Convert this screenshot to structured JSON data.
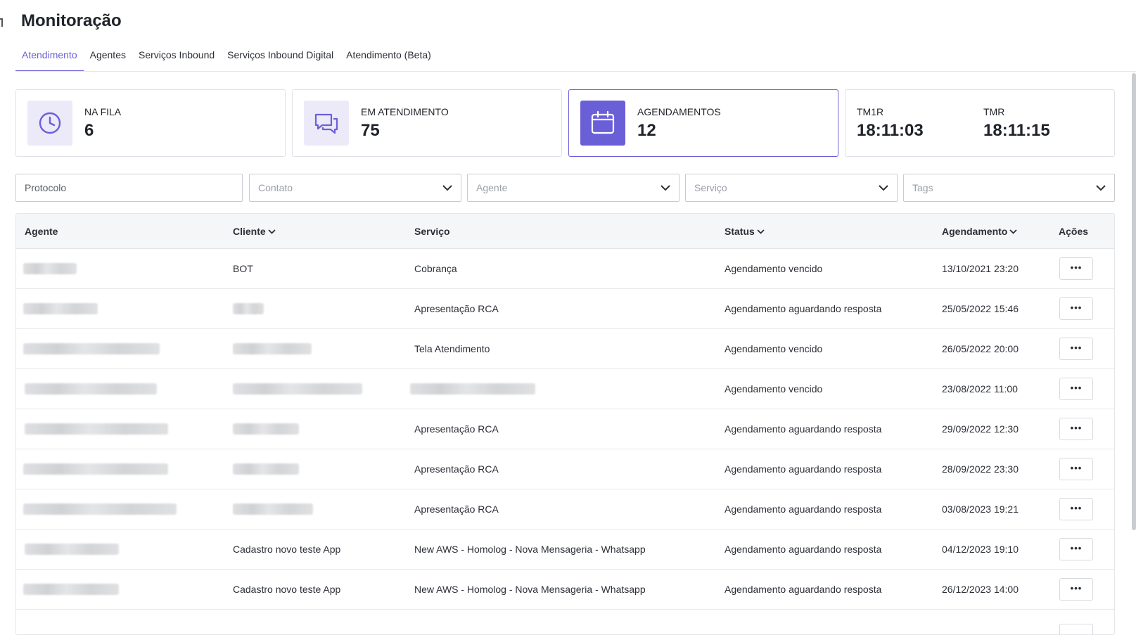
{
  "page": {
    "title": "Monitoração"
  },
  "tabs": [
    {
      "label": "Atendimento",
      "active": true
    },
    {
      "label": "Agentes"
    },
    {
      "label": "Serviços Inbound"
    },
    {
      "label": "Serviços Inbound Digital"
    },
    {
      "label": "Atendimento (Beta)"
    }
  ],
  "cards": {
    "fila": {
      "label": "NA FILA",
      "value": "6",
      "icon": "clock-icon"
    },
    "atendimento": {
      "label": "EM ATENDIMENTO",
      "value": "75",
      "icon": "chat-bubbles-icon"
    },
    "agendamentos": {
      "label": "AGENDAMENTOS",
      "value": "12",
      "icon": "calendar-icon"
    },
    "tm1r": {
      "label": "TM1R",
      "value": "18:11:03"
    },
    "tmr": {
      "label": "TMR",
      "value": "18:11:15"
    }
  },
  "filters": {
    "protocolo": "Protocolo",
    "contato": "Contato",
    "agente": "Agente",
    "servico": "Serviço",
    "tags": "Tags"
  },
  "table": {
    "headers": {
      "agente": "Agente",
      "cliente": "Cliente",
      "servico": "Serviço",
      "status": "Status",
      "agendamento": "Agendamento",
      "acoes": "Ações"
    },
    "rows": [
      {
        "cliente": "BOT",
        "servico": "Cobrança",
        "status": "Agendamento vencido",
        "agendamento": "13/10/2021 23:20"
      },
      {
        "cliente": "",
        "servico": "Apresentação RCA",
        "status": "Agendamento aguardando resposta",
        "agendamento": "25/05/2022 15:46"
      },
      {
        "cliente": "",
        "servico": "Tela Atendimento",
        "status": "Agendamento vencido",
        "agendamento": "26/05/2022 20:00"
      },
      {
        "cliente": "",
        "servico": "",
        "status": "Agendamento vencido",
        "agendamento": "23/08/2022 11:00"
      },
      {
        "cliente": "",
        "servico": "Apresentação RCA",
        "status": "Agendamento aguardando resposta",
        "agendamento": "29/09/2022 12:30"
      },
      {
        "cliente": "",
        "servico": "Apresentação RCA",
        "status": "Agendamento aguardando resposta",
        "agendamento": "28/09/2022 23:30"
      },
      {
        "cliente": "",
        "servico": "Apresentação RCA",
        "status": "Agendamento aguardando resposta",
        "agendamento": "03/08/2023 19:21"
      },
      {
        "cliente": "Cadastro novo teste App",
        "servico": "New AWS - Homolog - Nova Mensageria - Whatsapp",
        "status": "Agendamento aguardando resposta",
        "agendamento": "04/12/2023 19:10"
      },
      {
        "cliente": "Cadastro novo teste App",
        "servico": "New AWS - Homolog - Nova Mensageria - Whatsapp",
        "status": "Agendamento aguardando resposta",
        "agendamento": "26/12/2023 14:00"
      }
    ],
    "action_label": "•••"
  },
  "colors": {
    "accent": "#6b5fd8",
    "icon_bg": "#eceaf9"
  }
}
